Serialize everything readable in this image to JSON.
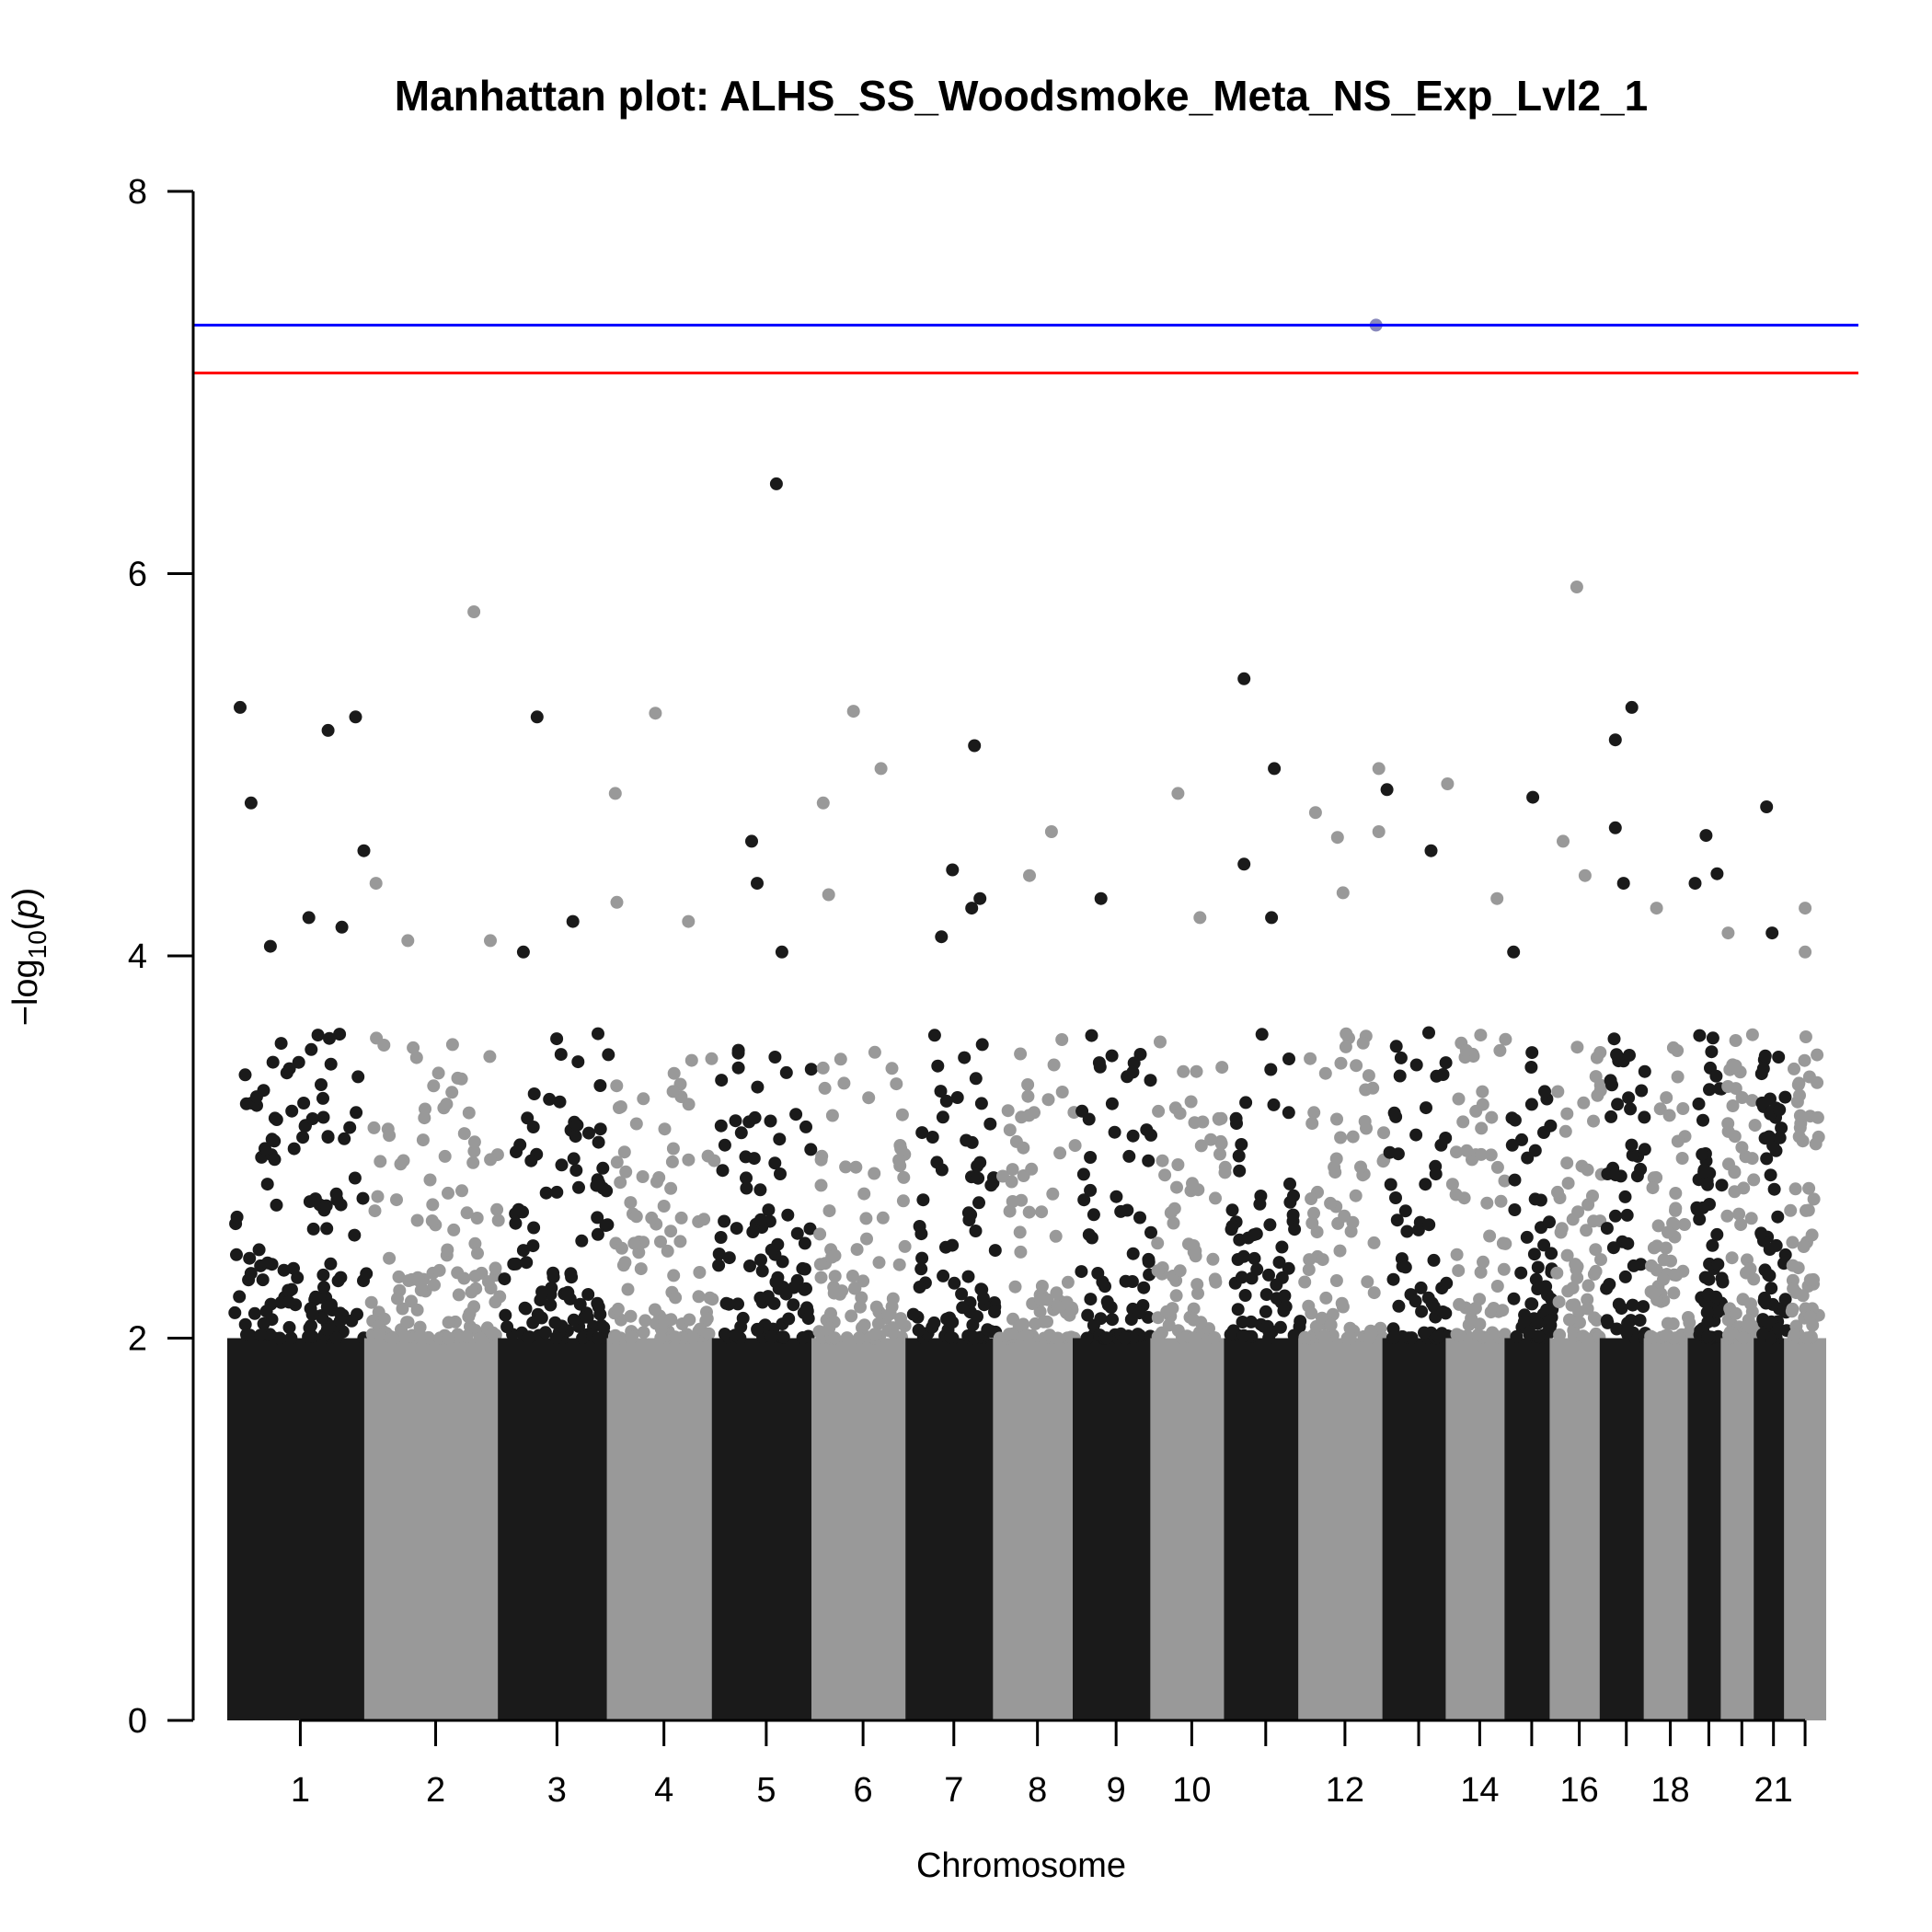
{
  "chart_data": {
    "type": "scatter",
    "title": "Manhattan plot: ALHS_SS_Woodsmoke_Meta_NS_Exp_Lvl2_1",
    "xlabel": "Chromosome",
    "ylabel": "-log10(p)",
    "ylabel_parts": {
      "prefix": "−log",
      "sub": "10",
      "paren_open": "(",
      "var": "p",
      "paren_close": ")"
    },
    "ylim": [
      0,
      8
    ],
    "yticks": [
      "0",
      "2",
      "4",
      "6",
      "8"
    ],
    "colors": {
      "odd": "#1a1a1a",
      "even": "#999999",
      "significance_line": "#0000ff",
      "suggestive_line": "#ff0000",
      "axis": "#000000"
    },
    "reference_lines": [
      {
        "name": "genome-wide significance",
        "y": 7.3,
        "color": "#0000ff"
      },
      {
        "name": "suggestive",
        "y": 7.05,
        "color": "#ff0000"
      }
    ],
    "chromosomes": [
      {
        "chr": 1,
        "label": "1",
        "start": 0,
        "end": 249,
        "color": "odd"
      },
      {
        "chr": 2,
        "label": "2",
        "start": 249,
        "end": 492,
        "color": "even"
      },
      {
        "chr": 3,
        "label": "3",
        "start": 492,
        "end": 690,
        "color": "odd"
      },
      {
        "chr": 4,
        "label": "4",
        "start": 690,
        "end": 881,
        "color": "even"
      },
      {
        "chr": 5,
        "label": "5",
        "start": 881,
        "end": 1062,
        "color": "odd"
      },
      {
        "chr": 6,
        "label": "6",
        "start": 1062,
        "end": 1233,
        "color": "even"
      },
      {
        "chr": 7,
        "label": "7",
        "start": 1233,
        "end": 1392,
        "color": "odd"
      },
      {
        "chr": 8,
        "label": "8",
        "start": 1392,
        "end": 1537,
        "color": "even"
      },
      {
        "chr": 9,
        "label": "9",
        "start": 1537,
        "end": 1678,
        "color": "odd"
      },
      {
        "chr": 10,
        "label": "10",
        "start": 1678,
        "end": 1812,
        "color": "even"
      },
      {
        "chr": 11,
        "label": "",
        "start": 1812,
        "end": 1947,
        "color": "odd"
      },
      {
        "chr": 12,
        "label": "12",
        "start": 1947,
        "end": 2100,
        "color": "even"
      },
      {
        "chr": 13,
        "label": "",
        "start": 2100,
        "end": 2215,
        "color": "odd"
      },
      {
        "chr": 14,
        "label": "14",
        "start": 2215,
        "end": 2322,
        "color": "even"
      },
      {
        "chr": 15,
        "label": "",
        "start": 2322,
        "end": 2404,
        "color": "odd"
      },
      {
        "chr": 16,
        "label": "16",
        "start": 2404,
        "end": 2495,
        "color": "even"
      },
      {
        "chr": 17,
        "label": "",
        "start": 2495,
        "end": 2575,
        "color": "odd"
      },
      {
        "chr": 18,
        "label": "18",
        "start": 2575,
        "end": 2655,
        "color": "even"
      },
      {
        "chr": 19,
        "label": "",
        "start": 2655,
        "end": 2715,
        "color": "odd"
      },
      {
        "chr": 20,
        "label": "",
        "start": 2715,
        "end": 2775,
        "color": "even"
      },
      {
        "chr": 21,
        "label": "21",
        "start": 2775,
        "end": 2830,
        "color": "odd"
      },
      {
        "chr": 22,
        "label": "",
        "start": 2830,
        "end": 2890,
        "color": "even"
      }
    ],
    "top_hits": [
      {
        "chr": 1,
        "pos": 15,
        "y": 5.3
      },
      {
        "chr": 1,
        "pos": 35,
        "y": 4.8
      },
      {
        "chr": 1,
        "pos": 175,
        "y": 5.18
      },
      {
        "chr": 1,
        "pos": 225,
        "y": 5.25
      },
      {
        "chr": 1,
        "pos": 240,
        "y": 4.55
      },
      {
        "chr": 1,
        "pos": 140,
        "y": 4.2
      },
      {
        "chr": 1,
        "pos": 70,
        "y": 4.05
      },
      {
        "chr": 1,
        "pos": 200,
        "y": 4.15
      },
      {
        "chr": 2,
        "pos": 262,
        "y": 4.38
      },
      {
        "chr": 2,
        "pos": 320,
        "y": 4.08
      },
      {
        "chr": 2,
        "pos": 440,
        "y": 5.8
      },
      {
        "chr": 2,
        "pos": 470,
        "y": 4.08
      },
      {
        "chr": 3,
        "pos": 555,
        "y": 5.25
      },
      {
        "chr": 3,
        "pos": 620,
        "y": 4.18
      },
      {
        "chr": 3,
        "pos": 530,
        "y": 4.02
      },
      {
        "chr": 4,
        "pos": 697,
        "y": 4.85
      },
      {
        "chr": 4,
        "pos": 770,
        "y": 5.27
      },
      {
        "chr": 4,
        "pos": 700,
        "y": 4.28
      },
      {
        "chr": 4,
        "pos": 830,
        "y": 4.18
      },
      {
        "chr": 5,
        "pos": 945,
        "y": 4.6
      },
      {
        "chr": 5,
        "pos": 955,
        "y": 4.38
      },
      {
        "chr": 5,
        "pos": 990,
        "y": 6.47
      },
      {
        "chr": 5,
        "pos": 1000,
        "y": 4.02
      },
      {
        "chr": 6,
        "pos": 1075,
        "y": 4.8
      },
      {
        "chr": 6,
        "pos": 1130,
        "y": 5.28
      },
      {
        "chr": 6,
        "pos": 1180,
        "y": 4.98
      },
      {
        "chr": 6,
        "pos": 1085,
        "y": 4.32
      },
      {
        "chr": 7,
        "pos": 1290,
        "y": 4.1
      },
      {
        "chr": 7,
        "pos": 1310,
        "y": 4.45
      },
      {
        "chr": 7,
        "pos": 1350,
        "y": 5.1
      },
      {
        "chr": 7,
        "pos": 1345,
        "y": 4.25
      },
      {
        "chr": 7,
        "pos": 1360,
        "y": 4.3
      },
      {
        "chr": 8,
        "pos": 1450,
        "y": 4.42
      },
      {
        "chr": 8,
        "pos": 1490,
        "y": 4.65
      },
      {
        "chr": 9,
        "pos": 1580,
        "y": 4.3
      },
      {
        "chr": 10,
        "pos": 1720,
        "y": 4.85
      },
      {
        "chr": 10,
        "pos": 1760,
        "y": 4.2
      },
      {
        "chr": 11,
        "pos": 1840,
        "y": 5.45
      },
      {
        "chr": 11,
        "pos": 1895,
        "y": 4.98
      },
      {
        "chr": 11,
        "pos": 1840,
        "y": 4.48
      },
      {
        "chr": 11,
        "pos": 1890,
        "y": 4.2
      },
      {
        "chr": 12,
        "pos": 1970,
        "y": 4.75
      },
      {
        "chr": 12,
        "pos": 2010,
        "y": 4.62
      },
      {
        "chr": 12,
        "pos": 2020,
        "y": 4.33
      },
      {
        "chr": 12,
        "pos": 2080,
        "y": 7.3
      },
      {
        "chr": 12,
        "pos": 2085,
        "y": 4.98
      },
      {
        "chr": 12,
        "pos": 2085,
        "y": 4.65
      },
      {
        "chr": 13,
        "pos": 2100,
        "y": 4.87
      },
      {
        "chr": 13,
        "pos": 2180,
        "y": 4.55
      },
      {
        "chr": 14,
        "pos": 2210,
        "y": 4.9
      },
      {
        "chr": 14,
        "pos": 2300,
        "y": 4.3
      },
      {
        "chr": 15,
        "pos": 2365,
        "y": 4.83
      },
      {
        "chr": 15,
        "pos": 2330,
        "y": 4.02
      },
      {
        "chr": 16,
        "pos": 2420,
        "y": 4.6
      },
      {
        "chr": 16,
        "pos": 2445,
        "y": 5.93
      },
      {
        "chr": 16,
        "pos": 2460,
        "y": 4.42
      },
      {
        "chr": 17,
        "pos": 2515,
        "y": 5.13
      },
      {
        "chr": 17,
        "pos": 2515,
        "y": 4.67
      },
      {
        "chr": 17,
        "pos": 2545,
        "y": 5.3
      },
      {
        "chr": 17,
        "pos": 2530,
        "y": 4.38
      },
      {
        "chr": 18,
        "pos": 2590,
        "y": 4.25
      },
      {
        "chr": 19,
        "pos": 2660,
        "y": 4.38
      },
      {
        "chr": 19,
        "pos": 2680,
        "y": 4.63
      },
      {
        "chr": 19,
        "pos": 2700,
        "y": 4.43
      },
      {
        "chr": 20,
        "pos": 2720,
        "y": 4.12
      },
      {
        "chr": 21,
        "pos": 2790,
        "y": 4.78
      },
      {
        "chr": 21,
        "pos": 2800,
        "y": 4.12
      },
      {
        "chr": 22,
        "pos": 2860,
        "y": 4.25
      },
      {
        "chr": 22,
        "pos": 2860,
        "y": 4.02
      }
    ]
  }
}
